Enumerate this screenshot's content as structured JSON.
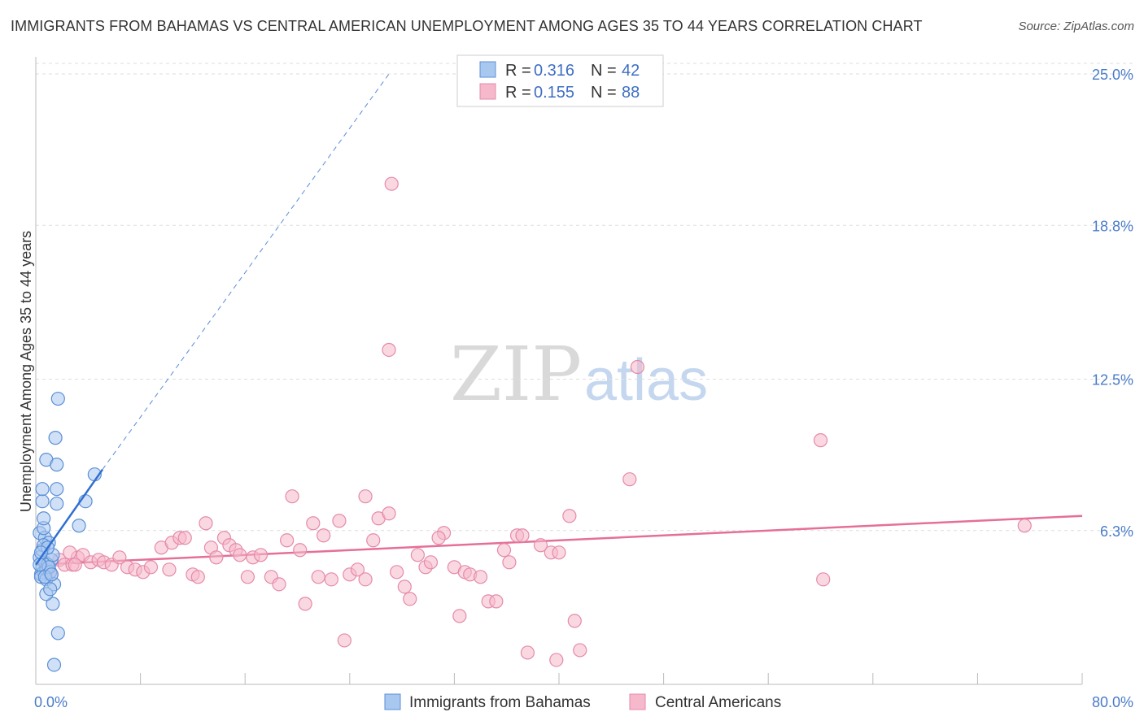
{
  "title": "IMMIGRANTS FROM BAHAMAS VS CENTRAL AMERICAN UNEMPLOYMENT AMONG AGES 35 TO 44 YEARS CORRELATION CHART",
  "source": "Source: ZipAtlas.com",
  "watermark": {
    "zip": "ZIP",
    "atlas": "atlas"
  },
  "colors": {
    "bahamas_fill": "#a9c8f0",
    "bahamas_stroke": "#5b8fd6",
    "bahamas_line": "#2f6fd0",
    "central_fill": "#f6b8cb",
    "central_stroke": "#e58aa8",
    "central_line": "#e56f98",
    "grid": "#dddddd",
    "axis_text": "#4a7cc9"
  },
  "legend": {
    "rows": [
      {
        "r_label": "R = ",
        "r_value": "0.316",
        "n_label": "N = ",
        "n_value": "42",
        "series": "bahamas"
      },
      {
        "r_label": "R = ",
        "r_value": "0.155",
        "n_label": "N = ",
        "n_value": "88",
        "series": "central"
      }
    ]
  },
  "chart_data": {
    "type": "scatter",
    "title": "IMMIGRANTS FROM BAHAMAS VS CENTRAL AMERICAN UNEMPLOYMENT AMONG AGES 35 TO 44 YEARS CORRELATION CHART",
    "xlabel": "",
    "ylabel": "Unemployment Among Ages 35 to 44 years",
    "xlim": [
      0,
      80
    ],
    "ylim": [
      0,
      25.7
    ],
    "x_tick_labels": [
      "0.0%",
      "80.0%"
    ],
    "y_ticks": [
      6.3,
      12.5,
      18.8,
      25.0
    ],
    "y_tick_labels": [
      "6.3%",
      "12.5%",
      "18.8%",
      "25.0%"
    ],
    "grid": "horizontal dashed",
    "series": [
      {
        "name": "Immigrants from Bahamas",
        "key": "bahamas",
        "R": 0.316,
        "N": 42,
        "trend": {
          "x0": 0.0,
          "y0": 4.9,
          "x1": 5.1,
          "y1": 8.8,
          "dashed_to_x": 27.0,
          "dashed_to_y": 25.0
        },
        "points": [
          [
            0.5,
            4.8
          ],
          [
            0.3,
            5.2
          ],
          [
            0.7,
            5.0
          ],
          [
            0.4,
            4.5
          ],
          [
            0.6,
            4.6
          ],
          [
            0.8,
            4.7
          ],
          [
            0.5,
            5.5
          ],
          [
            0.3,
            6.2
          ],
          [
            0.7,
            6.0
          ],
          [
            1.0,
            5.8
          ],
          [
            0.6,
            6.4
          ],
          [
            1.2,
            5.1
          ],
          [
            0.9,
            4.9
          ],
          [
            0.4,
            4.4
          ],
          [
            0.8,
            4.3
          ],
          [
            1.1,
            4.6
          ],
          [
            0.6,
            6.8
          ],
          [
            1.3,
            5.3
          ],
          [
            0.5,
            7.5
          ],
          [
            1.6,
            7.4
          ],
          [
            0.5,
            8.0
          ],
          [
            1.6,
            8.0
          ],
          [
            0.8,
            9.2
          ],
          [
            1.6,
            9.0
          ],
          [
            1.5,
            10.1
          ],
          [
            1.7,
            11.7
          ],
          [
            3.8,
            7.5
          ],
          [
            4.5,
            8.6
          ],
          [
            3.3,
            6.5
          ],
          [
            1.4,
            4.1
          ],
          [
            1.3,
            3.3
          ],
          [
            0.8,
            3.7
          ],
          [
            1.1,
            3.9
          ],
          [
            1.7,
            2.1
          ],
          [
            1.4,
            0.8
          ],
          [
            0.6,
            5.7
          ],
          [
            0.9,
            5.6
          ],
          [
            0.4,
            5.4
          ],
          [
            1.0,
            4.8
          ],
          [
            0.7,
            4.4
          ],
          [
            1.2,
            4.5
          ],
          [
            0.3,
            4.9
          ]
        ]
      },
      {
        "name": "Central Americans",
        "key": "central",
        "R": 0.155,
        "N": 88,
        "trend": {
          "x0": 0.0,
          "y0": 4.9,
          "x1": 80.0,
          "y1": 6.9
        },
        "points": [
          [
            1.0,
            4.7
          ],
          [
            1.2,
            4.5
          ],
          [
            1.8,
            5.1
          ],
          [
            2.2,
            4.9
          ],
          [
            2.8,
            4.9
          ],
          [
            3.2,
            5.2
          ],
          [
            3.6,
            5.3
          ],
          [
            4.2,
            5.0
          ],
          [
            4.8,
            5.1
          ],
          [
            5.2,
            5.0
          ],
          [
            5.8,
            4.9
          ],
          [
            6.4,
            5.2
          ],
          [
            7.0,
            4.8
          ],
          [
            7.6,
            4.7
          ],
          [
            8.2,
            4.6
          ],
          [
            8.8,
            4.8
          ],
          [
            9.6,
            5.6
          ],
          [
            10.2,
            4.7
          ],
          [
            10.4,
            5.8
          ],
          [
            11.0,
            6.0
          ],
          [
            11.4,
            6.0
          ],
          [
            12.0,
            4.5
          ],
          [
            12.4,
            4.4
          ],
          [
            13.0,
            6.6
          ],
          [
            13.4,
            5.6
          ],
          [
            13.8,
            5.2
          ],
          [
            14.4,
            6.0
          ],
          [
            14.8,
            5.7
          ],
          [
            15.3,
            5.5
          ],
          [
            15.6,
            5.3
          ],
          [
            16.2,
            4.4
          ],
          [
            16.6,
            5.2
          ],
          [
            17.2,
            5.3
          ],
          [
            18.0,
            4.4
          ],
          [
            18.6,
            4.1
          ],
          [
            19.2,
            5.9
          ],
          [
            19.6,
            7.7
          ],
          [
            20.2,
            5.5
          ],
          [
            20.6,
            3.3
          ],
          [
            21.2,
            6.6
          ],
          [
            21.6,
            4.4
          ],
          [
            22.0,
            6.1
          ],
          [
            22.6,
            4.3
          ],
          [
            23.2,
            6.7
          ],
          [
            23.6,
            1.8
          ],
          [
            24.0,
            4.5
          ],
          [
            24.6,
            4.7
          ],
          [
            25.2,
            4.3
          ],
          [
            25.8,
            5.9
          ],
          [
            25.2,
            7.7
          ],
          [
            26.2,
            6.8
          ],
          [
            27.0,
            7.0
          ],
          [
            27.6,
            4.6
          ],
          [
            28.2,
            4.0
          ],
          [
            28.6,
            3.5
          ],
          [
            29.2,
            5.3
          ],
          [
            29.8,
            4.8
          ],
          [
            30.2,
            5.0
          ],
          [
            31.2,
            6.2
          ],
          [
            30.8,
            6.0
          ],
          [
            32.0,
            4.8
          ],
          [
            32.4,
            2.8
          ],
          [
            32.8,
            4.6
          ],
          [
            33.2,
            4.5
          ],
          [
            34.0,
            4.4
          ],
          [
            34.6,
            3.4
          ],
          [
            35.2,
            3.4
          ],
          [
            35.8,
            5.5
          ],
          [
            36.2,
            5.0
          ],
          [
            36.8,
            6.1
          ],
          [
            37.2,
            6.1
          ],
          [
            37.6,
            1.3
          ],
          [
            38.6,
            5.7
          ],
          [
            39.4,
            5.4
          ],
          [
            39.8,
            1.0
          ],
          [
            40.0,
            5.4
          ],
          [
            40.8,
            6.9
          ],
          [
            41.2,
            2.6
          ],
          [
            41.6,
            1.4
          ],
          [
            45.4,
            8.4
          ],
          [
            46.0,
            13.0
          ],
          [
            27.2,
            20.5
          ],
          [
            27.0,
            13.7
          ],
          [
            60.0,
            10.0
          ],
          [
            60.2,
            4.3
          ],
          [
            75.6,
            6.5
          ],
          [
            2.6,
            5.4
          ],
          [
            3.0,
            4.9
          ]
        ]
      }
    ]
  },
  "bottom_legend": [
    {
      "label": "Immigrants from Bahamas",
      "series": "bahamas"
    },
    {
      "label": "Central Americans",
      "series": "central"
    }
  ]
}
